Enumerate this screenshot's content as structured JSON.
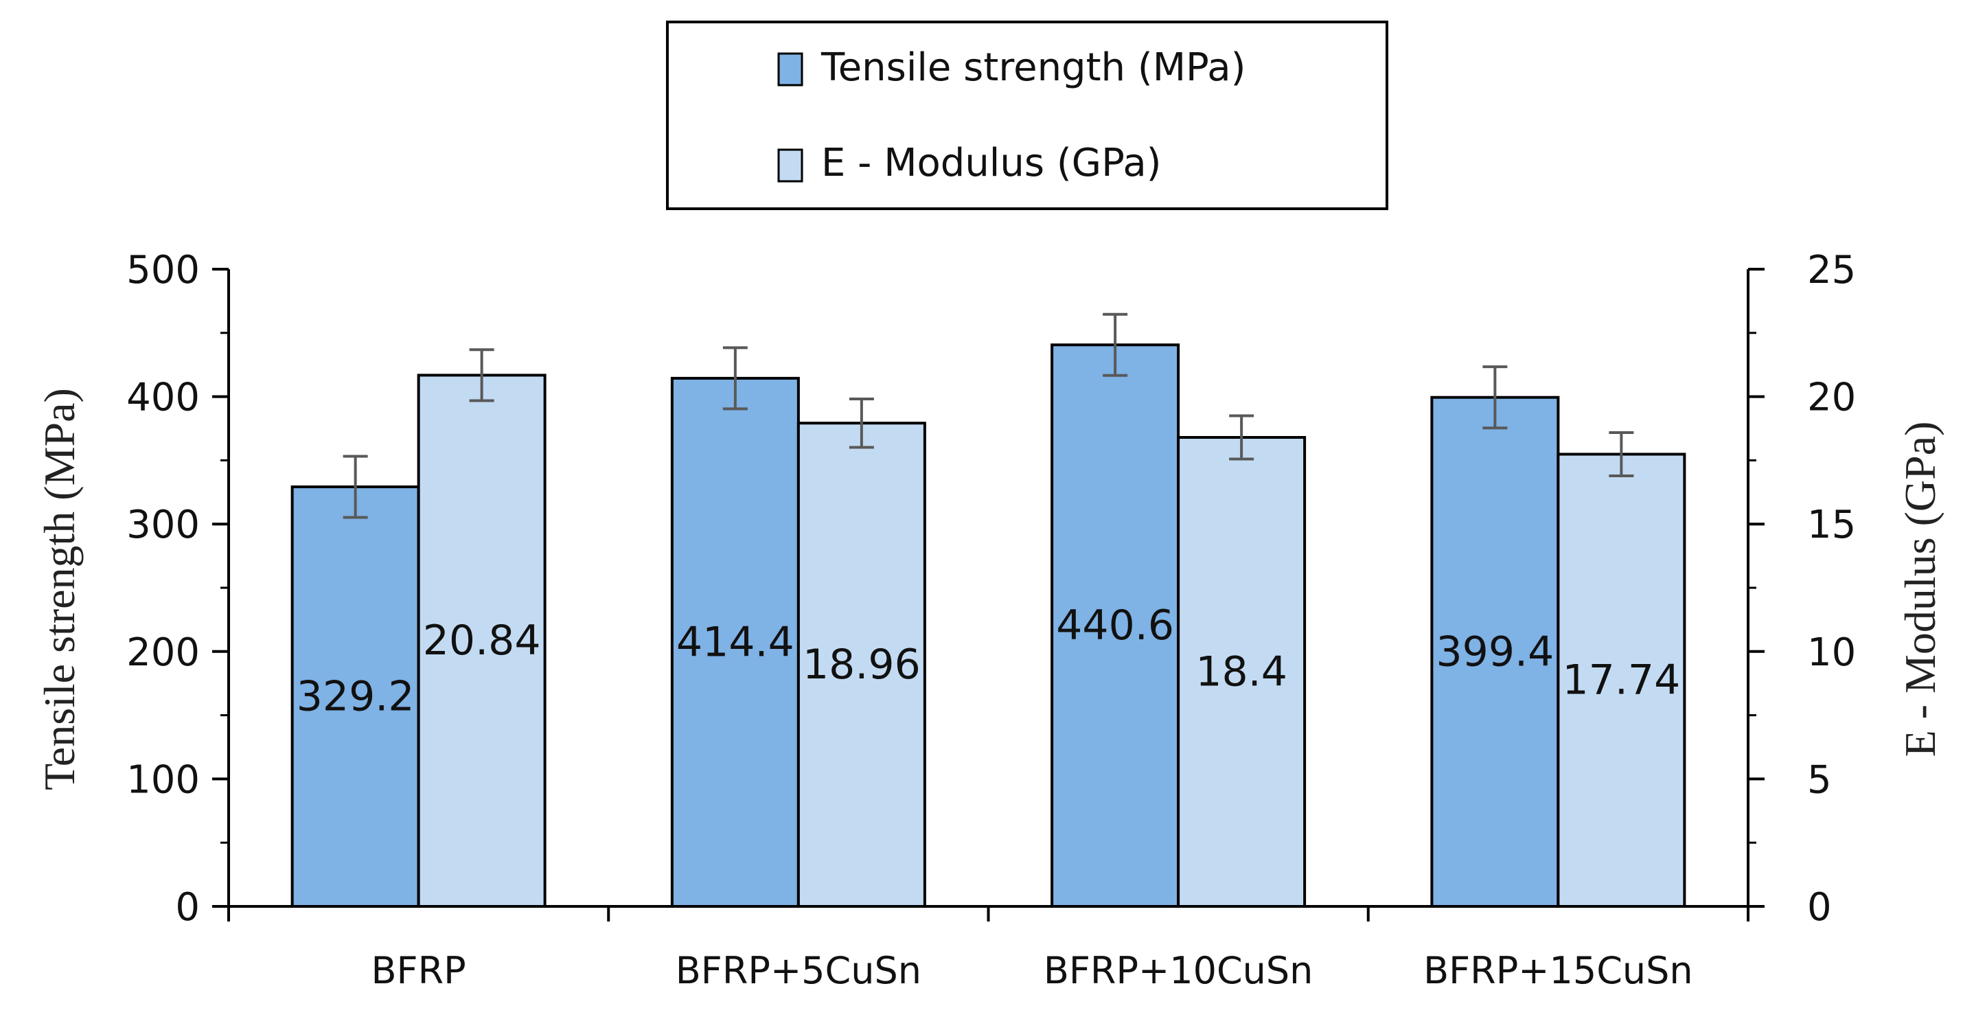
{
  "chart_data": {
    "type": "bar",
    "categories": [
      "BFRP",
      "BFRP+5CuSn",
      "BFRP+10CuSn",
      "BFRP+15CuSn"
    ],
    "series": [
      {
        "name": "Tensile strength (MPa)",
        "axis": "left",
        "color": "#7fb2e5",
        "values": [
          329.2,
          414.4,
          440.6,
          399.4
        ],
        "labels": [
          "329.2",
          "414.4",
          "440.6",
          "399.4"
        ],
        "error": [
          24,
          24,
          24,
          24
        ]
      },
      {
        "name": "E - Modulus (GPa)",
        "axis": "right",
        "color": "#c3dbf2",
        "values": [
          20.84,
          18.96,
          18.4,
          17.74
        ],
        "labels": [
          "20.84",
          "18.96",
          "18.4",
          "17.74"
        ],
        "error": [
          1.0,
          0.95,
          0.85,
          0.85
        ]
      }
    ],
    "ylabel": "Tensile strength (MPa)",
    "y2label": "E - Modulus (GPa)",
    "ylim": [
      0,
      500
    ],
    "y2lim": [
      0,
      25
    ],
    "yticks": [
      0,
      100,
      200,
      300,
      400,
      500
    ],
    "y2ticks": [
      0,
      5,
      10,
      15,
      20,
      25
    ],
    "legend_position": "top-center",
    "grid": false
  }
}
